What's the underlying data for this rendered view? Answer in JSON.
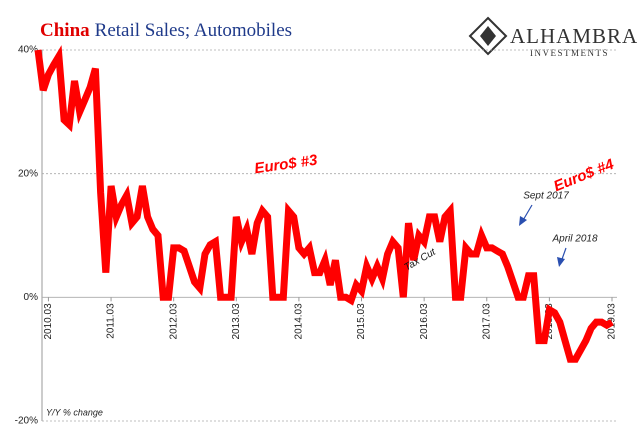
{
  "chart_data": {
    "type": "line",
    "title": {
      "highlight": "China",
      "rest": "Retail Sales; Automobiles"
    },
    "logo": {
      "name": "ALHAMBRA",
      "sub": "INVESTMENTS"
    },
    "y_label": "Y/Y % change",
    "annotations": [
      "Euro$ #3",
      "Euro$ #4",
      "Sept 2017",
      "April 2018",
      "Tax Cut"
    ],
    "categories": [
      null,
      null,
      "2010.03",
      null,
      null,
      null,
      null,
      null,
      null,
      null,
      null,
      null,
      null,
      null,
      "2011.03",
      null,
      null,
      null,
      null,
      null,
      null,
      null,
      null,
      null,
      null,
      null,
      "2012.03",
      null,
      null,
      null,
      null,
      null,
      null,
      null,
      null,
      null,
      null,
      null,
      "2013.03",
      null,
      null,
      null,
      null,
      null,
      null,
      null,
      null,
      null,
      null,
      null,
      "2014.03",
      null,
      null,
      null,
      null,
      null,
      null,
      null,
      null,
      null,
      null,
      null,
      "2015.03",
      null,
      null,
      null,
      null,
      null,
      null,
      null,
      null,
      null,
      null,
      null,
      "2016.03",
      null,
      null,
      null,
      null,
      null,
      null,
      null,
      null,
      null,
      null,
      null,
      "2017.03",
      null,
      null,
      null,
      null,
      null,
      null,
      null,
      null,
      null,
      null,
      null,
      "2018.03",
      null,
      null,
      null,
      null,
      null,
      null,
      null,
      null,
      null,
      null,
      null,
      "2019.03"
    ],
    "series": [
      {
        "name": "China Retail Sales; Automobiles",
        "color": "#ff0000",
        "values": [
          40,
          33.5,
          36,
          37.6,
          39,
          28.7,
          27.9,
          35,
          30,
          32,
          34,
          37,
          17,
          4,
          18,
          13,
          15,
          16.5,
          12,
          13,
          18,
          13,
          11,
          10,
          0,
          0,
          8,
          8,
          7.5,
          5,
          2.5,
          1.5,
          7,
          8.5,
          9,
          0,
          0,
          0,
          13,
          9,
          11,
          7,
          12,
          14,
          13,
          0,
          0,
          0,
          14,
          13,
          8,
          7,
          8,
          4,
          4,
          6,
          2,
          6,
          0,
          0,
          -0.5,
          2,
          1,
          5,
          3,
          5,
          3,
          7,
          9,
          8,
          0,
          12,
          6,
          10,
          9,
          13,
          13,
          9,
          13,
          14,
          0,
          0,
          8,
          7,
          7,
          10,
          8,
          8,
          7.5,
          7,
          5,
          2.5,
          0,
          0,
          3.5,
          3.5,
          -7,
          -7,
          -2,
          -2.5,
          -4,
          -7,
          -10,
          -10,
          -8.5,
          -7,
          -5,
          -4,
          -4,
          -4.5,
          -4
        ]
      }
    ],
    "ylim": [
      -20,
      40
    ],
    "yticks": [
      {
        "value": -20,
        "label": "-20%"
      },
      {
        "value": 0,
        "label": "0%"
      },
      {
        "value": 20,
        "label": "20%"
      },
      {
        "value": 40,
        "label": "40%"
      }
    ],
    "grid": true
  }
}
